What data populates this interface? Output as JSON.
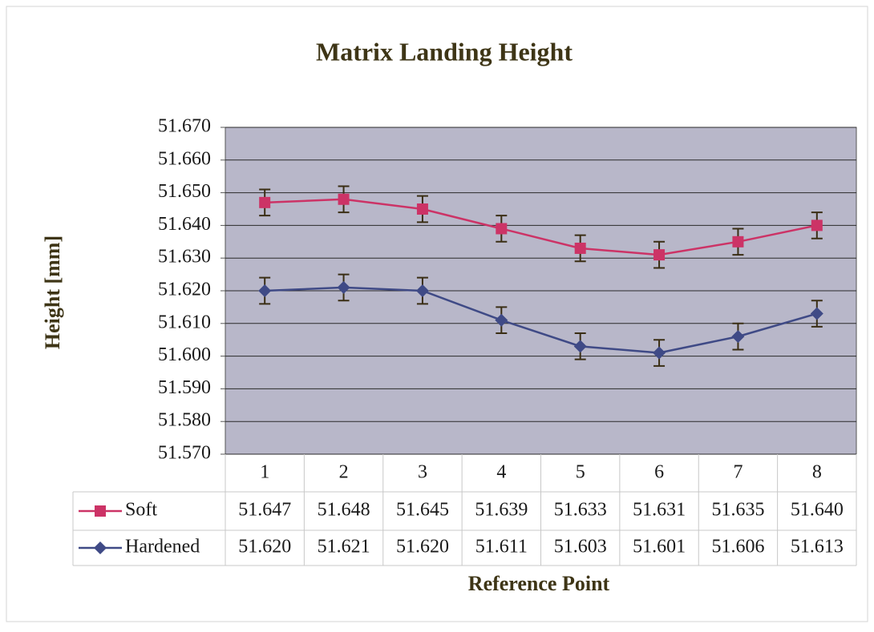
{
  "chart_data": {
    "type": "line",
    "title": "Matrix Landing Height",
    "ylabel": "Height [mm]",
    "xlabel": "Reference Point",
    "categories": [
      "1",
      "2",
      "3",
      "4",
      "5",
      "6",
      "7",
      "8"
    ],
    "series": [
      {
        "name": "Soft",
        "color": "#cc3366",
        "marker": "square",
        "values": [
          51.647,
          51.648,
          51.645,
          51.639,
          51.633,
          51.631,
          51.635,
          51.64
        ],
        "value_labels": [
          "51.647",
          "51.648",
          "51.645",
          "51.639",
          "51.633",
          "51.631",
          "51.635",
          "51.640"
        ],
        "errors": [
          0.004,
          0.004,
          0.004,
          0.004,
          0.004,
          0.004,
          0.004,
          0.004
        ]
      },
      {
        "name": "Hardened",
        "color": "#3f4a86",
        "marker": "diamond",
        "values": [
          51.62,
          51.621,
          51.62,
          51.611,
          51.603,
          51.601,
          51.606,
          51.613
        ],
        "value_labels": [
          "51.620",
          "51.621",
          "51.620",
          "51.611",
          "51.603",
          "51.601",
          "51.606",
          "51.613"
        ],
        "errors": [
          0.004,
          0.004,
          0.004,
          0.004,
          0.004,
          0.004,
          0.004,
          0.004
        ]
      }
    ],
    "ylim": [
      51.57,
      51.67
    ],
    "yticks": [
      {
        "value": 51.57,
        "label": "51.570"
      },
      {
        "value": 51.58,
        "label": "51.580"
      },
      {
        "value": 51.59,
        "label": "51.590"
      },
      {
        "value": 51.6,
        "label": "51.600"
      },
      {
        "value": 51.61,
        "label": "51.610"
      },
      {
        "value": 51.62,
        "label": "51.620"
      },
      {
        "value": 51.63,
        "label": "51.630"
      },
      {
        "value": 51.64,
        "label": "51.640"
      },
      {
        "value": 51.65,
        "label": "51.650"
      },
      {
        "value": 51.66,
        "label": "51.660"
      },
      {
        "value": 51.67,
        "label": "51.670"
      }
    ],
    "grid": true,
    "data_table": true
  }
}
